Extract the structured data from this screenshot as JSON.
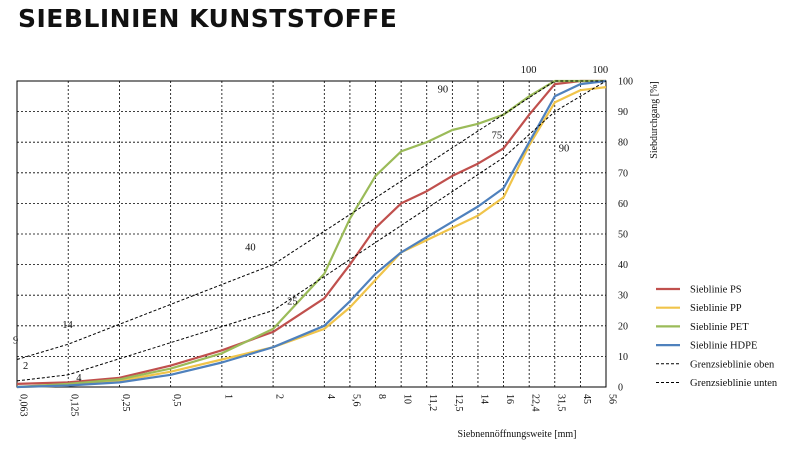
{
  "page": {
    "title": "SIEBLINIEN KUNSTSTOFFE"
  },
  "chart_data": {
    "type": "line",
    "xlabel": "Siebnennöffnungsweite  [mm]",
    "ylabel": "Siebdurchgang  [%]",
    "ylim": [
      0,
      100
    ],
    "y_ticks": [
      0,
      10,
      20,
      30,
      40,
      50,
      60,
      70,
      80,
      90,
      100
    ],
    "x": [
      "0,063",
      "0,125",
      "0,25",
      "0,5",
      "1",
      "2",
      "4",
      "5,6",
      "8",
      "10",
      "11,2",
      "12,5",
      "14",
      "16",
      "22,4",
      "31,5",
      "45",
      "56"
    ],
    "x_positions": [
      0,
      1,
      2,
      3,
      4,
      5,
      6,
      6.5,
      7,
      7.5,
      8,
      8.5,
      9,
      9.5,
      10,
      10.5,
      11,
      11.5
    ],
    "grid": true,
    "legend_position": "right",
    "series": [
      {
        "name": "Sieblinie PS",
        "color": "#c0504d",
        "style": "solid",
        "x": [
          "0,063",
          "0,125",
          "0,25",
          "0,5",
          "1",
          "2",
          "4",
          "5,6",
          "8",
          "10",
          "11,2",
          "12,5",
          "14",
          "16",
          "22,4",
          "31,5",
          "45",
          "56"
        ],
        "values": [
          1,
          1.5,
          3,
          7,
          12,
          18,
          29,
          40,
          52,
          60,
          64,
          69,
          73,
          78,
          89,
          99,
          100,
          100
        ]
      },
      {
        "name": "Sieblinie PP",
        "color": "#f0c44a",
        "style": "solid",
        "x": [
          "0,063",
          "0,125",
          "0,25",
          "0,5",
          "1",
          "2",
          "4",
          "5,6",
          "8",
          "10",
          "11,2",
          "12,5",
          "14",
          "16",
          "22,4",
          "31,5",
          "45",
          "56"
        ],
        "values": [
          0,
          0.5,
          2,
          5,
          9,
          13,
          19,
          26,
          35,
          44,
          48,
          52,
          56,
          62,
          79,
          93,
          97,
          98
        ]
      },
      {
        "name": "Sieblinie PET",
        "color": "#9bbb59",
        "style": "solid",
        "x": [
          "0,063",
          "0,125",
          "0,25",
          "0,5",
          "1",
          "2",
          "4",
          "5,6",
          "8",
          "10",
          "11,2",
          "12,5",
          "14",
          "16",
          "22,4",
          "31,5",
          "45",
          "56"
        ],
        "values": [
          0,
          1,
          2.5,
          6,
          11,
          19,
          37,
          55,
          69,
          77,
          80,
          84,
          86,
          89,
          95,
          100,
          100,
          100
        ]
      },
      {
        "name": "Sieblinie HDPE",
        "color": "#4f81bd",
        "style": "solid",
        "x": [
          "0,063",
          "0,125",
          "0,25",
          "0,5",
          "1",
          "2",
          "4",
          "5,6",
          "8",
          "10",
          "11,2",
          "12,5",
          "14",
          "16",
          "22,4",
          "31,5",
          "45",
          "56"
        ],
        "values": [
          0,
          0.5,
          1.5,
          4,
          8,
          13,
          20,
          28,
          37,
          44,
          49,
          54,
          59,
          65,
          80,
          95,
          99,
          100
        ]
      },
      {
        "name": "Grenzsieblinie oben",
        "color": "#000000",
        "style": "dashed",
        "x": [
          "0,063",
          "0,125",
          "2",
          "31,5",
          "56"
        ],
        "values": [
          9,
          14,
          40,
          100,
          100
        ]
      },
      {
        "name": "Grenzsieblinie unten",
        "color": "#000000",
        "style": "dashed",
        "x": [
          "0,063",
          "0,125",
          "2",
          "16",
          "31,5",
          "56"
        ],
        "values": [
          2,
          4,
          25,
          75,
          90,
          100
        ]
      }
    ],
    "annotations": [
      {
        "text": "9",
        "x": "0,063",
        "y": 9
      },
      {
        "text": "14",
        "x": "0,125",
        "y": 14
      },
      {
        "text": "2",
        "x": "0,063",
        "y": 2
      },
      {
        "text": "4",
        "x": "0,125",
        "y": 4
      },
      {
        "text": "40",
        "x": "2",
        "y": 40
      },
      {
        "text": "25",
        "x": "2",
        "y": 25
      },
      {
        "text": "90",
        "x": "16",
        "y": 90
      },
      {
        "text": "100",
        "x": "31,5",
        "y": 100
      },
      {
        "text": "100",
        "x": "45",
        "y": 100
      },
      {
        "text": "90",
        "x": "31,5",
        "y": 90
      },
      {
        "text": "75",
        "x": "16",
        "y": 75
      }
    ]
  }
}
